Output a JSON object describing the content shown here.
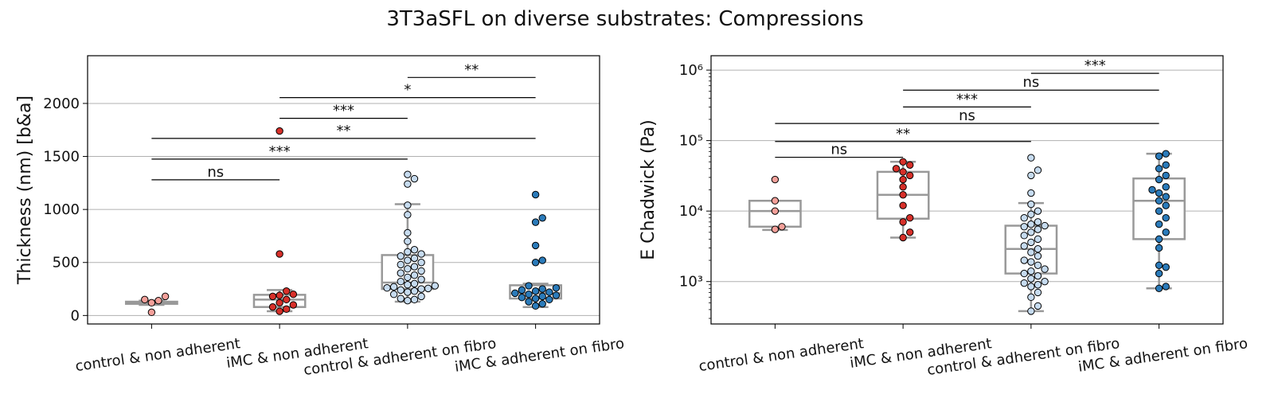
{
  "title": "3T3aSFL on diverse substrates: Compressions",
  "colors": {
    "control & non adherent": "#f4a09a",
    "iMC & non adherent": "#d7302a",
    "control & adherent on fibro": "#c6dbef",
    "iMC & adherent on fibro": "#2b7bba",
    "box": "#999999",
    "grid": "#b0b0b0"
  },
  "chart_data": [
    {
      "type": "box+swarm",
      "ylabel": "Thickness (nm) [b&a]",
      "yscale": "linear",
      "ylim": [
        -80,
        2450
      ],
      "yticks": [
        0,
        500,
        1000,
        1500,
        2000
      ],
      "grid": "y",
      "categories": [
        "control & non adherent",
        "iMC & non adherent",
        "control & adherent on fibro",
        "iMC & adherent on fibro"
      ],
      "boxes": [
        {
          "whislo": 100,
          "q1": 110,
          "med": 120,
          "q3": 130,
          "whishi": 140
        },
        {
          "whislo": 40,
          "q1": 80,
          "med": 150,
          "q3": 195,
          "whishi": 240
        },
        {
          "whislo": 130,
          "q1": 250,
          "med": 310,
          "q3": 570,
          "whishi": 1050
        },
        {
          "whislo": 80,
          "q1": 160,
          "med": 210,
          "q3": 285,
          "whishi": 300
        }
      ],
      "points": [
        [
          30,
          120,
          140,
          150,
          180
        ],
        [
          40,
          60,
          80,
          100,
          120,
          150,
          180,
          190,
          200,
          230,
          580,
          1740
        ],
        [
          140,
          150,
          160,
          180,
          200,
          220,
          230,
          240,
          250,
          255,
          260,
          270,
          280,
          290,
          300,
          320,
          340,
          360,
          380,
          400,
          420,
          440,
          460,
          480,
          500,
          520,
          540,
          560,
          580,
          600,
          620,
          700,
          780,
          950,
          1040,
          1240,
          1290,
          1330
        ],
        [
          90,
          110,
          130,
          150,
          160,
          170,
          180,
          190,
          200,
          210,
          220,
          230,
          240,
          250,
          260,
          280,
          500,
          520,
          660,
          880,
          920,
          1140
        ]
      ],
      "significance": [
        {
          "pair": [
            0,
            1
          ],
          "label": "ns",
          "y": 1280
        },
        {
          "pair": [
            0,
            2
          ],
          "label": "***",
          "y": 1475
        },
        {
          "pair": [
            0,
            3
          ],
          "label": "**",
          "y": 1670
        },
        {
          "pair": [
            1,
            2
          ],
          "label": "***",
          "y": 1860
        },
        {
          "pair": [
            1,
            3
          ],
          "label": "*",
          "y": 2055
        },
        {
          "pair": [
            2,
            3
          ],
          "label": "**",
          "y": 2245
        }
      ]
    },
    {
      "type": "box+swarm",
      "ylabel": "E Chadwick (Pa)",
      "yscale": "log",
      "ylim": [
        250,
        1600000
      ],
      "yticks": [
        1000,
        10000,
        100000,
        1000000
      ],
      "ytick_labels": [
        "10³",
        "10⁴",
        "10⁵",
        "10⁶"
      ],
      "grid": "y",
      "categories": [
        "control & non adherent",
        "iMC & non adherent",
        "control & adherent on fibro",
        "iMC & adherent on fibro"
      ],
      "boxes": [
        {
          "whislo": 5400,
          "q1": 6000,
          "med": 10000,
          "q3": 14000,
          "whishi": 14000
        },
        {
          "whislo": 4200,
          "q1": 7800,
          "med": 17000,
          "q3": 36000,
          "whishi": 50000
        },
        {
          "whislo": 380,
          "q1": 1300,
          "med": 2900,
          "q3": 6200,
          "whishi": 13000
        },
        {
          "whislo": 800,
          "q1": 4000,
          "med": 14000,
          "q3": 29000,
          "whishi": 65000
        }
      ],
      "points": [
        [
          5500,
          6000,
          10000,
          14000,
          28000
        ],
        [
          4200,
          5000,
          7000,
          8000,
          12000,
          17000,
          22000,
          28000,
          32000,
          36000,
          40000,
          45000,
          50000
        ],
        [
          380,
          450,
          600,
          700,
          850,
          900,
          950,
          1000,
          1100,
          1200,
          1300,
          1400,
          1500,
          1700,
          1900,
          2000,
          2300,
          2600,
          2900,
          3200,
          3600,
          4000,
          4500,
          5000,
          5500,
          6000,
          6200,
          6500,
          7000,
          8000,
          9000,
          10000,
          12500,
          18000,
          32000,
          38000,
          57000
        ],
        [
          800,
          850,
          1300,
          1600,
          1700,
          3000,
          4000,
          5000,
          6500,
          8000,
          10000,
          12000,
          14000,
          16000,
          18000,
          20000,
          22000,
          28000,
          32000,
          40000,
          45000,
          60000,
          65000
        ]
      ],
      "significance": [
        {
          "pair": [
            0,
            1
          ],
          "label": "ns",
          "y": 58000
        },
        {
          "pair": [
            0,
            2
          ],
          "label": "**",
          "y": 97000
        },
        {
          "pair": [
            0,
            3
          ],
          "label": "ns",
          "y": 175000
        },
        {
          "pair": [
            1,
            2
          ],
          "label": "***",
          "y": 300000
        },
        {
          "pair": [
            1,
            3
          ],
          "label": "ns",
          "y": 520000
        },
        {
          "pair": [
            2,
            3
          ],
          "label": "***",
          "y": 900000
        }
      ]
    }
  ]
}
